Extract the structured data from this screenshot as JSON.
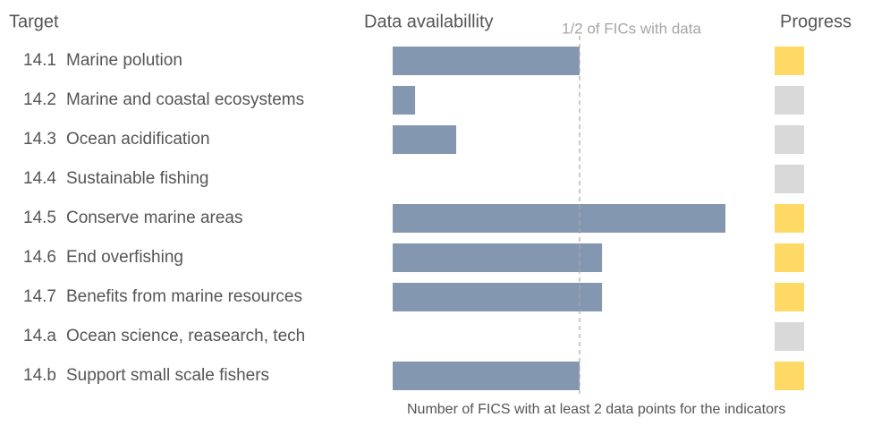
{
  "chart_data": {
    "type": "bar",
    "orientation": "horizontal",
    "target_header": "Target",
    "availability_header": "Data availabillity",
    "progress_header": "Progress",
    "x_label": "Number of FICS with at least 2 data points for the indicators",
    "reference": {
      "label": "1/2 of FICs with data",
      "value": 50
    },
    "codes": [
      "14.1",
      "14.2",
      "14.3",
      "14.4",
      "14.5",
      "14.6",
      "14.7",
      "14.a",
      "14.b"
    ],
    "categories": [
      "Marine polution",
      "Marine and coastal ecosystems",
      "Ocean acidification",
      "Sustainable fishing",
      "Conserve marine areas",
      "End overfishing",
      "Benefits from marine resources",
      "Ocean science, reasearch, tech",
      "Support small scale fishers"
    ],
    "values": [
      50,
      6,
      17,
      0,
      89,
      56,
      56,
      0,
      50
    ],
    "color": "#8497b0",
    "progress_colors": [
      "#ffd966",
      "#d9d9d9",
      "#d9d9d9",
      "#d9d9d9",
      "#ffd966",
      "#ffd966",
      "#ffd966",
      "#d9d9d9",
      "#ffd966"
    ],
    "xlim": [
      0,
      100
    ]
  }
}
